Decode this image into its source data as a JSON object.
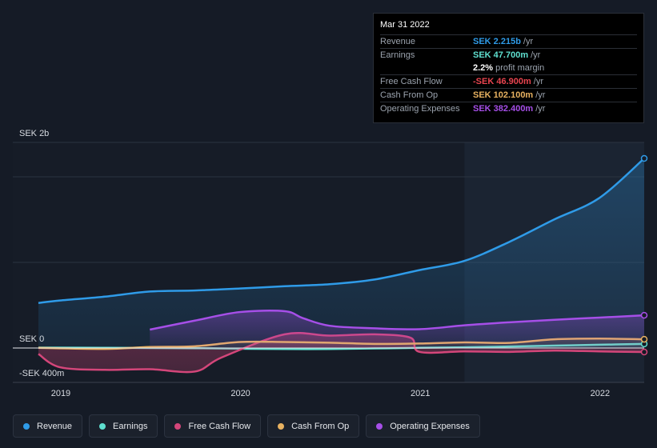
{
  "chart_data": {
    "type": "area",
    "currency": "SEK",
    "ylim": [
      -400,
      2200
    ],
    "y_tick_labels": [
      "SEK 2b",
      "SEK 0",
      "-SEK 400m"
    ],
    "x_tick_labels": [
      "2019",
      "2020",
      "2021",
      "2022"
    ],
    "xlim": [
      2018.88,
      2022.25
    ],
    "highlight_start": 2021.25,
    "series": [
      {
        "name": "Revenue",
        "color": "#2f9be8",
        "x": [
          2018.88,
          2019.0,
          2019.25,
          2019.5,
          2019.75,
          2020.0,
          2020.25,
          2020.5,
          2020.75,
          2021.0,
          2021.25,
          2021.5,
          2021.75,
          2022.0,
          2022.25
        ],
        "values": [
          526,
          555,
          600,
          660,
          672,
          695,
          722,
          745,
          800,
          910,
          1018,
          1240,
          1502,
          1752,
          2215
        ]
      },
      {
        "name": "Earnings",
        "color": "#5fe0d0",
        "x": [
          2018.88,
          2019.25,
          2019.5,
          2019.75,
          2020.0,
          2020.25,
          2020.5,
          2020.75,
          2021.0,
          2021.25,
          2021.5,
          2021.75,
          2022.0,
          2022.25
        ],
        "values": [
          5,
          2,
          0,
          -3,
          -8,
          -12,
          -12,
          -5,
          2,
          8,
          18,
          28,
          38,
          47.7
        ]
      },
      {
        "name": "Free Cash Flow",
        "color": "#d4467a",
        "x": [
          2018.88,
          2019.0,
          2019.25,
          2019.5,
          2019.75,
          2019.9,
          2020.25,
          2020.5,
          2020.75,
          2020.95,
          2021.0,
          2021.25,
          2021.5,
          2021.75,
          2022.0,
          2022.25
        ],
        "values": [
          -70,
          -225,
          -255,
          -248,
          -275,
          -110,
          160,
          145,
          160,
          120,
          -45,
          -40,
          -45,
          -30,
          -40,
          -46.9
        ]
      },
      {
        "name": "Cash From Op",
        "color": "#e8b261",
        "x": [
          2018.88,
          2019.25,
          2019.5,
          2019.75,
          2020.0,
          2020.25,
          2020.5,
          2020.75,
          2021.0,
          2021.25,
          2021.5,
          2021.75,
          2022.0,
          2022.25
        ],
        "values": [
          2,
          -10,
          12,
          20,
          70,
          70,
          62,
          48,
          52,
          65,
          60,
          102,
          110,
          102.1
        ]
      },
      {
        "name": "Operating Expenses",
        "color": "#a64fe8",
        "x": [
          2019.5,
          2019.75,
          2020.0,
          2020.25,
          2020.35,
          2020.5,
          2020.75,
          2021.0,
          2021.25,
          2021.5,
          2021.75,
          2022.0,
          2022.25
        ],
        "values": [
          215,
          320,
          420,
          430,
          350,
          260,
          230,
          220,
          265,
          300,
          330,
          355,
          382.4
        ]
      }
    ]
  },
  "tooltip": {
    "date": "Mar 31 2022",
    "rows": [
      {
        "label": "Revenue",
        "value": "SEK 2.215b",
        "unit": "/yr",
        "color": "#2f9be8"
      },
      {
        "label": "Earnings",
        "value": "SEK 47.700m",
        "unit": "/yr",
        "color": "#5fe0d0"
      },
      {
        "label": "",
        "value": "2.2%",
        "unit": "profit margin",
        "color": "#ffffff"
      },
      {
        "label": "Free Cash Flow",
        "value": "-SEK 46.900m",
        "unit": "/yr",
        "color": "#e8444f"
      },
      {
        "label": "Cash From Op",
        "value": "SEK 102.100m",
        "unit": "/yr",
        "color": "#e8b261"
      },
      {
        "label": "Operating Expenses",
        "value": "SEK 382.400m",
        "unit": "/yr",
        "color": "#a64fe8"
      }
    ]
  },
  "legend": [
    {
      "label": "Revenue",
      "color": "#2f9be8"
    },
    {
      "label": "Earnings",
      "color": "#5fe0d0"
    },
    {
      "label": "Free Cash Flow",
      "color": "#d4467a"
    },
    {
      "label": "Cash From Op",
      "color": "#e8b261"
    },
    {
      "label": "Operating Expenses",
      "color": "#a64fe8"
    }
  ]
}
